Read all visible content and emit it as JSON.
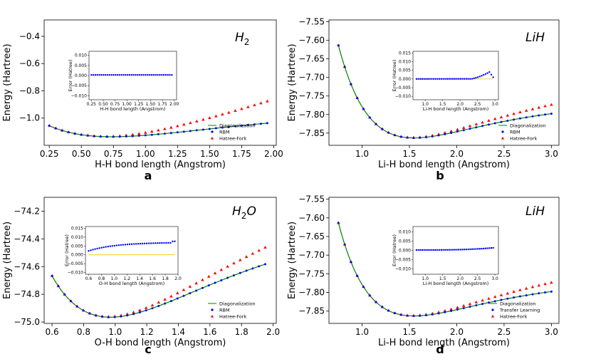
{
  "chart_data": [
    {
      "type": "line",
      "panel_label": "a",
      "molecule": "H",
      "molecule_sub": "2",
      "xlabel": "H-H bond length (Angstrom)",
      "ylabel": "Energy (Hartree)",
      "xlim": [
        0.21,
        2.02
      ],
      "ylim": [
        -1.2,
        -0.28
      ],
      "xticks": [
        "0.25",
        "0.50",
        "0.75",
        "1.00",
        "1.25",
        "1.50",
        "1.75",
        "2.00"
      ],
      "yticks": [
        "-0.4",
        "-0.6",
        "-0.8",
        "-1.0"
      ],
      "curve": {
        "type": "h2"
      },
      "hf_deviation": 0.16,
      "legend": [
        "Diagonalization",
        "RBM",
        "Hatree-Fork"
      ],
      "inset": {
        "xlabel": "H-H bond length (Angstrom)",
        "ylabel": "Error (Hatree)",
        "xlim": [
          0.2,
          2.05
        ],
        "ylim": [
          -0.012,
          0.012
        ],
        "xticks": [
          "0.25",
          "0.50",
          "0.75",
          "1.00",
          "1.25",
          "1.50",
          "1.75",
          "2.00"
        ],
        "yticks": [
          "0.010",
          "0.005",
          "0.000",
          "-0.005",
          "-0.010"
        ],
        "error_x_range": [
          0.25,
          1.95
        ],
        "error_mode": "flat",
        "error_level": 0.0003,
        "show_zero_line": false
      }
    },
    {
      "type": "line",
      "panel_label": "b",
      "molecule": "LiH",
      "molecule_sub": "",
      "xlabel": "Li-H bond length (Angstrom)",
      "ylabel": "Energy (Hartree)",
      "xlim": [
        0.65,
        3.08
      ],
      "ylim": [
        -7.883,
        -7.545
      ],
      "xticks": [
        "1.0",
        "1.5",
        "2.0",
        "2.5",
        "3.0"
      ],
      "yticks": [
        "-7.55",
        "-7.60",
        "-7.65",
        "-7.70",
        "-7.75",
        "-7.80",
        "-7.85"
      ],
      "curve": {
        "type": "morse",
        "De": 0.096,
        "re": 1.55,
        "a": 1.2,
        "Emin": -7.863
      },
      "hf_deviation": 0.024,
      "legend": [
        "Diagonalization",
        "RBM",
        "Hatree-Fork"
      ],
      "inset": {
        "xlabel": "Li-H bond length (Angstrom)",
        "ylabel": "Error (Hatree)",
        "xlim": [
          0.65,
          3.1
        ],
        "ylim": [
          -0.012,
          0.016
        ],
        "xticks": [
          "1.0",
          "1.5",
          "2.0",
          "2.5",
          "3.0"
        ],
        "yticks": [
          "0.015",
          "0.010",
          "0.005",
          "0.000",
          "-0.005",
          "-0.010"
        ],
        "error_x_range": [
          0.75,
          2.95
        ],
        "error_mode": "rise_drop",
        "error_level": 0.0,
        "show_zero_line": true
      }
    },
    {
      "type": "line",
      "panel_label": "c",
      "molecule": "H",
      "molecule_sub": "2",
      "molecule_suffix": "O",
      "xlabel": "O-H bond length (Angstrom)",
      "ylabel": "Energy (Hartree)",
      "xlim": [
        0.55,
        2.02
      ],
      "ylim": [
        -75.01,
        -74.1
      ],
      "xticks": [
        "0.6",
        "0.8",
        "1.0",
        "1.2",
        "1.4",
        "1.6",
        "1.8",
        "2.0"
      ],
      "yticks": [
        "-74.2",
        "-74.4",
        "-74.6",
        "-74.8",
        "-75.0"
      ],
      "curve": {
        "type": "morse",
        "De": 0.71,
        "re": 0.97,
        "a": 1.35,
        "Emin": -74.965
      },
      "hf_deviation": 0.12,
      "legend": [
        "Diagonalization",
        "RBM",
        "Hatree-Fork"
      ],
      "inset": {
        "xlabel": "O-H bond length (Angstrom)",
        "ylabel": "Error (Hatree)",
        "xlim": [
          0.55,
          2.0
        ],
        "ylim": [
          -0.011,
          0.016
        ],
        "xticks": [
          "0.6",
          "0.8",
          "1.0",
          "1.2",
          "1.4",
          "1.6",
          "1.8",
          "2.0"
        ],
        "yticks": [
          "0.015",
          "0.010",
          "0.005",
          "0.000",
          "-0.005",
          "-0.010"
        ],
        "error_x_range": [
          0.6,
          1.95
        ],
        "error_mode": "rise",
        "error_level": 0.0,
        "show_zero_line": true
      }
    },
    {
      "type": "line",
      "panel_label": "d",
      "molecule": "LiH",
      "molecule_sub": "",
      "xlabel": "Li-H bond length (Angstrom)",
      "ylabel": "Energy (Hartree)",
      "xlim": [
        0.65,
        3.08
      ],
      "ylim": [
        -7.883,
        -7.545
      ],
      "xticks": [
        "1.0",
        "1.5",
        "2.0",
        "2.5",
        "3.0"
      ],
      "yticks": [
        "-7.55",
        "-7.60",
        "-7.65",
        "-7.70",
        "-7.75",
        "-7.80",
        "-7.85"
      ],
      "curve": {
        "type": "morse",
        "De": 0.096,
        "re": 1.55,
        "a": 1.2,
        "Emin": -7.863
      },
      "hf_deviation": 0.024,
      "legend": [
        "Diagonalization",
        "Transfer Learning",
        "Hatree-Fork"
      ],
      "inset": {
        "xlabel": "Li-H bond length (Angstrom)",
        "ylabel": "Error (Hatree)",
        "xlim": [
          0.65,
          3.1
        ],
        "ylim": [
          -0.013,
          0.013
        ],
        "xticks": [
          "1.0",
          "1.5",
          "2.0",
          "2.5",
          "3.0"
        ],
        "yticks": [
          "0.010",
          "0.005",
          "0.000",
          "-0.005",
          "-0.010"
        ],
        "error_x_range": [
          0.75,
          2.95
        ],
        "error_mode": "slight_rise",
        "error_level": 0.0,
        "show_zero_line": false
      }
    }
  ],
  "colors": {
    "diag": "#008000",
    "rbm": "#0000ff",
    "hf": "#ff0000",
    "zero_line": "#ffbf00"
  }
}
